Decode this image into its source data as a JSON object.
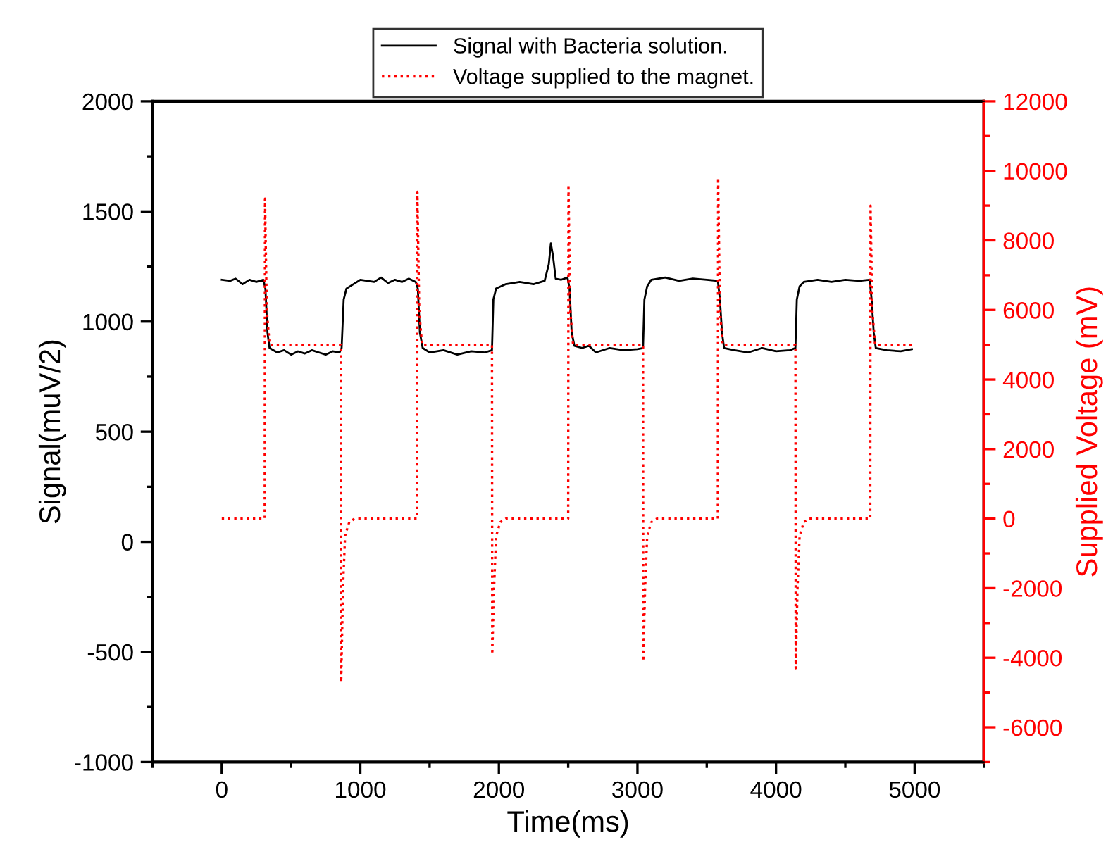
{
  "chart_data": {
    "type": "line",
    "xlabel": "Time(ms)",
    "ylabel": "Signal(muV/2)",
    "y2label": "Supplied Voltage (mV)",
    "xlim": [
      -500,
      5500
    ],
    "xticks": [
      0,
      1000,
      2000,
      3000,
      4000,
      5000
    ],
    "ylim": [
      -1000,
      2000
    ],
    "yticks": [
      -1000,
      -500,
      0,
      500,
      1000,
      1500,
      2000
    ],
    "y2lim": [
      -7000,
      12000
    ],
    "y2ticks": [
      -6000,
      -4000,
      -2000,
      0,
      2000,
      4000,
      6000,
      8000,
      10000,
      12000
    ],
    "legend": "top",
    "grid": false,
    "series": [
      {
        "name": "Signal with Bacteria solution.",
        "color": "#000000",
        "axis": "y",
        "line_style": "solid",
        "x": [
          0,
          60,
          100,
          150,
          200,
          250,
          300,
          315,
          330,
          345,
          400,
          450,
          500,
          550,
          600,
          650,
          700,
          750,
          800,
          850,
          865,
          880,
          900,
          950,
          1000,
          1100,
          1150,
          1200,
          1250,
          1300,
          1350,
          1400,
          1415,
          1430,
          1450,
          1500,
          1600,
          1700,
          1800,
          1900,
          1950,
          1960,
          1980,
          2050,
          2150,
          2250,
          2330,
          2360,
          2375,
          2390,
          2410,
          2450,
          2495,
          2510,
          2525,
          2545,
          2600,
          2650,
          2700,
          2800,
          2900,
          3000,
          3040,
          3050,
          3070,
          3100,
          3200,
          3300,
          3400,
          3500,
          3580,
          3595,
          3610,
          3625,
          3700,
          3800,
          3900,
          4000,
          4100,
          4140,
          4150,
          4170,
          4200,
          4300,
          4400,
          4500,
          4600,
          4675,
          4690,
          4705,
          4720,
          4800,
          4900,
          4980
        ],
        "values": [
          1190,
          1185,
          1195,
          1170,
          1190,
          1180,
          1190,
          1150,
          950,
          880,
          860,
          870,
          850,
          865,
          855,
          870,
          860,
          850,
          865,
          860,
          880,
          1100,
          1150,
          1170,
          1190,
          1180,
          1200,
          1175,
          1190,
          1180,
          1195,
          1180,
          1150,
          950,
          880,
          860,
          870,
          850,
          865,
          860,
          870,
          1100,
          1150,
          1170,
          1180,
          1170,
          1185,
          1260,
          1355,
          1300,
          1195,
          1190,
          1200,
          1150,
          950,
          890,
          880,
          890,
          860,
          880,
          870,
          875,
          880,
          1100,
          1160,
          1190,
          1200,
          1185,
          1195,
          1190,
          1185,
          1100,
          950,
          880,
          870,
          860,
          880,
          865,
          870,
          880,
          1100,
          1160,
          1180,
          1190,
          1180,
          1190,
          1185,
          1190,
          1100,
          950,
          880,
          870,
          865,
          875
        ]
      },
      {
        "name": "Voltage supplied to the magnet.",
        "color": "#ff0000",
        "axis": "y2",
        "line_style": "dotted",
        "x": [
          0,
          310,
          312,
          325,
          345,
          860,
          862,
          875,
          890,
          920,
          960,
          1410,
          1412,
          1425,
          1445,
          1950,
          1952,
          1965,
          1980,
          2010,
          2050,
          2500,
          2502,
          2515,
          2535,
          3040,
          3042,
          3055,
          3070,
          3100,
          3140,
          3580,
          3582,
          3595,
          3615,
          4140,
          4142,
          4155,
          4170,
          4200,
          4240,
          4680,
          4682,
          4695,
          4715,
          4980
        ],
        "values": [
          0,
          0,
          9200,
          6000,
          5000,
          5000,
          -4700,
          -2000,
          -500,
          -100,
          0,
          0,
          9400,
          6000,
          5000,
          5000,
          -3900,
          -2000,
          -500,
          -100,
          0,
          0,
          9600,
          6000,
          5000,
          5000,
          -4100,
          -2000,
          -500,
          -100,
          0,
          0,
          9800,
          6000,
          5000,
          5000,
          -4300,
          -2000,
          -500,
          -100,
          0,
          0,
          9000,
          6000,
          5000,
          5000
        ]
      }
    ]
  }
}
